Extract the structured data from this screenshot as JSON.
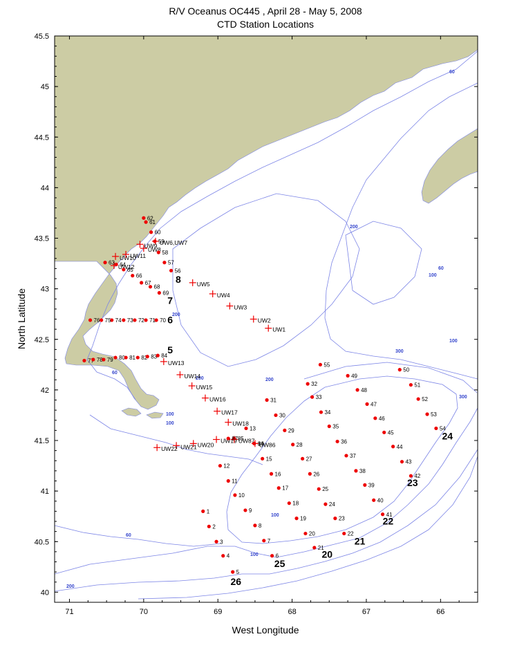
{
  "title": {
    "line1": "R/V Oceanus OC445 , April 28 - May 5, 2008",
    "line2": "CTD Station Locations"
  },
  "axes": {
    "xlabel": "West Longitude",
    "ylabel": "North Latitude",
    "xticks": [
      "71",
      "70",
      "69",
      "68",
      "67",
      "66"
    ],
    "yticks": [
      "45.5",
      "45",
      "44.5",
      "44",
      "43.5",
      "43",
      "42.5",
      "42",
      "41.5",
      "41",
      "40.5",
      "40"
    ]
  },
  "colors": {
    "land": "#cccca4",
    "contour": "#7b84e6",
    "station": "#ee0000",
    "underway": "#ee0000"
  },
  "chart_data": {
    "type": "map",
    "xlim_west_longitude": [
      71.2,
      65.5
    ],
    "ylim_north_latitude": [
      39.9,
      45.5
    ],
    "contour_labels": [
      "60",
      "60",
      "60",
      "60",
      "100",
      "100",
      "100",
      "100",
      "100",
      "100",
      "200",
      "200",
      "200",
      "200",
      "200",
      "300",
      "300"
    ],
    "stations": [
      {
        "label": "1",
        "lon": 69.2,
        "lat": 40.8
      },
      {
        "label": "2",
        "lon": 69.12,
        "lat": 40.65
      },
      {
        "label": "3",
        "lon": 69.02,
        "lat": 40.5
      },
      {
        "label": "4",
        "lon": 68.93,
        "lat": 40.36
      },
      {
        "label": "5",
        "lon": 68.8,
        "lat": 40.2
      },
      {
        "label": "6",
        "lon": 68.27,
        "lat": 40.36
      },
      {
        "label": "7",
        "lon": 68.38,
        "lat": 40.51
      },
      {
        "label": "8",
        "lon": 68.5,
        "lat": 40.66
      },
      {
        "label": "9",
        "lon": 68.63,
        "lat": 40.81
      },
      {
        "label": "10",
        "lon": 68.77,
        "lat": 40.96
      },
      {
        "label": "11",
        "lon": 68.86,
        "lat": 41.1
      },
      {
        "label": "12",
        "lon": 68.97,
        "lat": 41.25
      },
      {
        "label": "13",
        "lon": 68.62,
        "lat": 41.62
      },
      {
        "label": "14",
        "lon": 68.51,
        "lat": 41.47
      },
      {
        "label": "15",
        "lon": 68.4,
        "lat": 41.32
      },
      {
        "label": "16",
        "lon": 68.28,
        "lat": 41.17
      },
      {
        "label": "17",
        "lon": 68.18,
        "lat": 41.03
      },
      {
        "label": "18",
        "lon": 68.04,
        "lat": 40.88
      },
      {
        "label": "19",
        "lon": 67.94,
        "lat": 40.73
      },
      {
        "label": "20",
        "lon": 67.82,
        "lat": 40.58
      },
      {
        "label": "21",
        "lon": 67.7,
        "lat": 40.44
      },
      {
        "label": "22",
        "lon": 67.3,
        "lat": 40.58
      },
      {
        "label": "23",
        "lon": 67.42,
        "lat": 40.73
      },
      {
        "label": "24",
        "lon": 67.55,
        "lat": 40.87
      },
      {
        "label": "25",
        "lon": 67.64,
        "lat": 41.02
      },
      {
        "label": "26",
        "lon": 67.76,
        "lat": 41.17
      },
      {
        "label": "27",
        "lon": 67.86,
        "lat": 41.32
      },
      {
        "label": "28",
        "lon": 67.99,
        "lat": 41.46
      },
      {
        "label": "29",
        "lon": 68.1,
        "lat": 41.6
      },
      {
        "label": "30",
        "lon": 68.22,
        "lat": 41.75
      },
      {
        "label": "31",
        "lon": 68.34,
        "lat": 41.9
      },
      {
        "label": "32",
        "lon": 67.79,
        "lat": 42.06
      },
      {
        "label": "33",
        "lon": 67.73,
        "lat": 41.93
      },
      {
        "label": "34",
        "lon": 67.61,
        "lat": 41.78
      },
      {
        "label": "35",
        "lon": 67.5,
        "lat": 41.64
      },
      {
        "label": "36",
        "lon": 67.39,
        "lat": 41.49
      },
      {
        "label": "37",
        "lon": 67.27,
        "lat": 41.35
      },
      {
        "label": "38",
        "lon": 67.14,
        "lat": 41.2
      },
      {
        "label": "39",
        "lon": 67.02,
        "lat": 41.06
      },
      {
        "label": "40",
        "lon": 66.9,
        "lat": 40.91
      },
      {
        "label": "41",
        "lon": 66.78,
        "lat": 40.77
      },
      {
        "label": "42",
        "lon": 66.4,
        "lat": 41.15
      },
      {
        "label": "43",
        "lon": 66.52,
        "lat": 41.29
      },
      {
        "label": "44",
        "lon": 66.64,
        "lat": 41.44
      },
      {
        "label": "45",
        "lon": 66.76,
        "lat": 41.58
      },
      {
        "label": "46",
        "lon": 66.88,
        "lat": 41.72
      },
      {
        "label": "47",
        "lon": 66.99,
        "lat": 41.86
      },
      {
        "label": "48",
        "lon": 67.12,
        "lat": 42.0
      },
      {
        "label": "49",
        "lon": 67.25,
        "lat": 42.14
      },
      {
        "label": "50",
        "lon": 66.55,
        "lat": 42.2
      },
      {
        "label": "51",
        "lon": 66.4,
        "lat": 42.05
      },
      {
        "label": "52",
        "lon": 66.3,
        "lat": 41.91
      },
      {
        "label": "53",
        "lon": 66.18,
        "lat": 41.76
      },
      {
        "label": "54",
        "lon": 66.06,
        "lat": 41.62
      },
      {
        "label": "55",
        "lon": 67.62,
        "lat": 42.25
      },
      {
        "label": "56",
        "lon": 69.63,
        "lat": 43.18
      },
      {
        "label": "57",
        "lon": 69.72,
        "lat": 43.26
      },
      {
        "label": "58",
        "lon": 69.8,
        "lat": 43.36
      },
      {
        "label": "59",
        "lon": 69.85,
        "lat": 43.47
      },
      {
        "label": "60",
        "lon": 69.9,
        "lat": 43.56
      },
      {
        "label": "61",
        "lon": 69.97,
        "lat": 43.66
      },
      {
        "label": "62",
        "lon": 70.0,
        "lat": 43.7
      },
      {
        "label": "63",
        "lon": 70.52,
        "lat": 43.26
      },
      {
        "label": "64",
        "lon": 70.37,
        "lat": 43.24
      },
      {
        "label": "65",
        "lon": 70.27,
        "lat": 43.19
      },
      {
        "label": "66",
        "lon": 70.15,
        "lat": 43.13
      },
      {
        "label": "67",
        "lon": 70.03,
        "lat": 43.06
      },
      {
        "label": "68",
        "lon": 69.91,
        "lat": 43.02
      },
      {
        "label": "69",
        "lon": 69.79,
        "lat": 42.96
      },
      {
        "label": "70",
        "lon": 69.83,
        "lat": 42.69
      },
      {
        "label": "71",
        "lon": 69.97,
        "lat": 42.69
      },
      {
        "label": "72",
        "lon": 70.12,
        "lat": 42.69
      },
      {
        "label": "73",
        "lon": 70.27,
        "lat": 42.69
      },
      {
        "label": "74",
        "lon": 70.43,
        "lat": 42.69
      },
      {
        "label": "75",
        "lon": 70.57,
        "lat": 42.69
      },
      {
        "label": "76",
        "lon": 70.72,
        "lat": 42.69
      },
      {
        "label": "77",
        "lon": 70.8,
        "lat": 42.29
      },
      {
        "label": "78",
        "lon": 70.68,
        "lat": 42.3
      },
      {
        "label": "79",
        "lon": 70.54,
        "lat": 42.3
      },
      {
        "label": "80",
        "lon": 70.38,
        "lat": 42.32
      },
      {
        "label": "81",
        "lon": 70.24,
        "lat": 42.32
      },
      {
        "label": "82",
        "lon": 70.08,
        "lat": 42.32
      },
      {
        "label": "83",
        "lon": 69.95,
        "lat": 42.33
      },
      {
        "label": "84",
        "lon": 69.81,
        "lat": 42.34
      },
      {
        "label": "85",
        "lon": 68.78,
        "lat": 41.52
      },
      {
        "label": "86",
        "lon": 68.51,
        "lat": 41.47
      },
      {
        "label": "87",
        "lon": 68.86,
        "lat": 41.52
      }
    ],
    "underway_stations": [
      {
        "label": "UW1",
        "lon": 68.32,
        "lat": 42.61
      },
      {
        "label": "UW2",
        "lon": 68.52,
        "lat": 42.7
      },
      {
        "label": "UW3",
        "lon": 68.84,
        "lat": 42.83
      },
      {
        "label": "UW4",
        "lon": 69.07,
        "lat": 42.95
      },
      {
        "label": "UW5",
        "lon": 69.34,
        "lat": 43.06
      },
      {
        "label": "UW6,UW7",
        "lon": 69.84,
        "lat": 43.47
      },
      {
        "label": "UW8",
        "lon": 70.0,
        "lat": 43.4
      },
      {
        "label": "UW9",
        "lon": 70.05,
        "lat": 43.44
      },
      {
        "label": "UW10",
        "lon": 70.38,
        "lat": 43.32
      },
      {
        "label": "UW11",
        "lon": 70.24,
        "lat": 43.34
      },
      {
        "label": "UW12",
        "lon": 70.4,
        "lat": 43.23
      },
      {
        "label": "UW13",
        "lon": 69.73,
        "lat": 42.28
      },
      {
        "label": "UW14",
        "lon": 69.51,
        "lat": 42.15
      },
      {
        "label": "UW15",
        "lon": 69.35,
        "lat": 42.04
      },
      {
        "label": "UW16",
        "lon": 69.17,
        "lat": 41.92
      },
      {
        "label": "UW17",
        "lon": 69.01,
        "lat": 41.79
      },
      {
        "label": "UW18",
        "lon": 68.86,
        "lat": 41.68
      },
      {
        "label": "UW19",
        "lon": 69.02,
        "lat": 41.51
      },
      {
        "label": "UW20",
        "lon": 69.33,
        "lat": 41.47
      },
      {
        "label": "UW21",
        "lon": 69.56,
        "lat": 41.45
      },
      {
        "label": "UW22",
        "lon": 69.82,
        "lat": 41.43
      },
      {
        "label": "UW86",
        "lon": 68.5,
        "lat": 41.47
      },
      {
        "label": "UW87",
        "lon": 68.78,
        "lat": 41.51
      }
    ],
    "transect_labels": [
      {
        "label": "5",
        "lon": 69.68,
        "lat": 42.36
      },
      {
        "label": "6",
        "lon": 69.68,
        "lat": 42.66
      },
      {
        "label": "7",
        "lon": 69.68,
        "lat": 42.85
      },
      {
        "label": "8",
        "lon": 69.57,
        "lat": 43.06
      },
      {
        "label": "20",
        "lon": 67.6,
        "lat": 40.34
      },
      {
        "label": "21",
        "lon": 67.16,
        "lat": 40.47
      },
      {
        "label": "22",
        "lon": 66.78,
        "lat": 40.67
      },
      {
        "label": "23",
        "lon": 66.45,
        "lat": 41.05
      },
      {
        "label": "24",
        "lon": 65.98,
        "lat": 41.51
      },
      {
        "label": "25",
        "lon": 68.24,
        "lat": 40.25
      },
      {
        "label": "26",
        "lon": 68.83,
        "lat": 40.07
      }
    ]
  }
}
